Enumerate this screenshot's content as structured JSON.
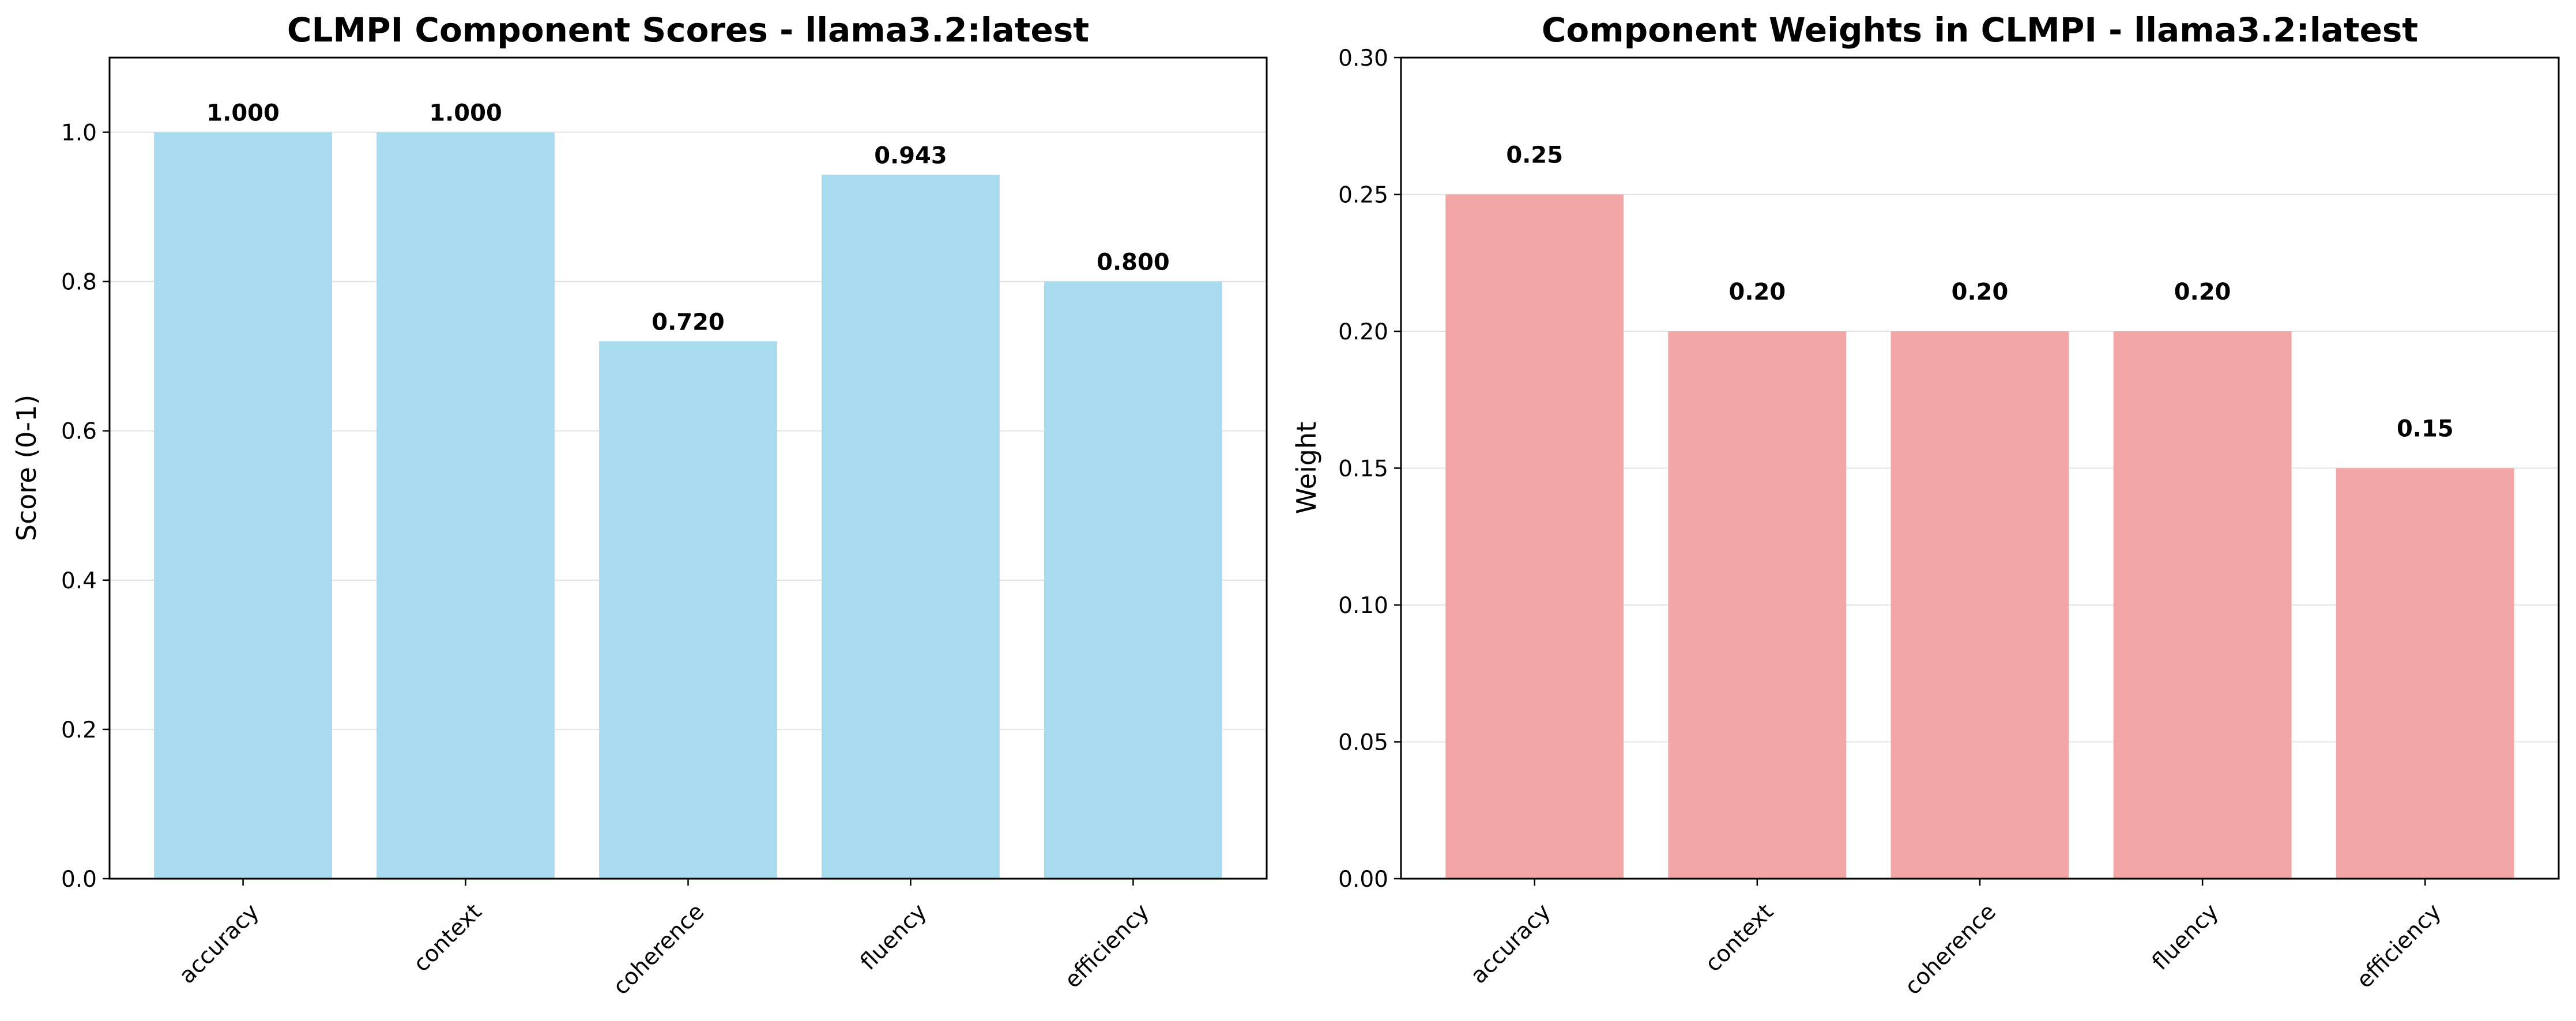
{
  "chart_data": [
    {
      "type": "bar",
      "title": "CLMPI Component Scores - llama3.2:latest",
      "xlabel": "",
      "ylabel": "Score (0-1)",
      "categories": [
        "accuracy",
        "context",
        "coherence",
        "fluency",
        "efficiency"
      ],
      "values": [
        1.0,
        1.0,
        0.72,
        0.943,
        0.8
      ],
      "value_labels": [
        "1.000",
        "1.000",
        "0.720",
        "0.943",
        "0.800"
      ],
      "ylim": [
        0,
        1.1
      ],
      "yticks": [
        "0.0",
        "0.2",
        "0.4",
        "0.6",
        "0.8",
        "1.0"
      ],
      "ytick_values": [
        0,
        0.2,
        0.4,
        0.6,
        0.8,
        1.0
      ],
      "grid": "y",
      "bar_color": "#a8dbed"
    },
    {
      "type": "bar",
      "title": "Component Weights in CLMPI - llama3.2:latest",
      "xlabel": "",
      "ylabel": "Weight",
      "categories": [
        "accuracy",
        "context",
        "coherence",
        "fluency",
        "efficiency"
      ],
      "values": [
        0.25,
        0.2,
        0.2,
        0.2,
        0.15
      ],
      "value_labels": [
        "0.25",
        "0.20",
        "0.20",
        "0.20",
        "0.15"
      ],
      "ylim": [
        0,
        0.3
      ],
      "yticks": [
        "0.00",
        "0.05",
        "0.10",
        "0.15",
        "0.20",
        "0.25",
        "0.30"
      ],
      "ytick_values": [
        0,
        0.05,
        0.1,
        0.15,
        0.2,
        0.25,
        0.3
      ],
      "grid": "y",
      "bar_color": "#f2a6a6"
    }
  ]
}
